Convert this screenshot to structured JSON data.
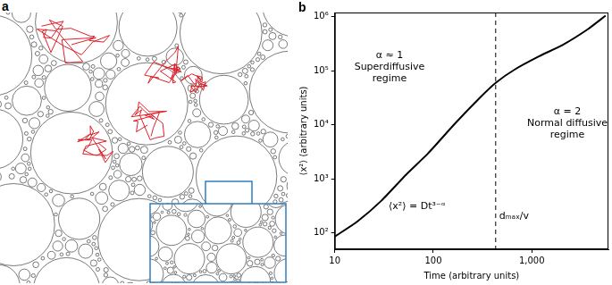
{
  "figure": {
    "panel_labels": [
      "a",
      "b"
    ]
  },
  "chart_data": {
    "type": "line",
    "x_label": "Time (arbitrary units)",
    "y_label": "⟨x²⟩ (arbitrary units)",
    "x": [
      10,
      16.8,
      29.9,
      53,
      89,
      167,
      298,
      430,
      667,
      1190,
      2110,
      3760,
      5620
    ],
    "values": [
      86,
      161,
      400,
      1200,
      3000,
      10700,
      32000,
      60000,
      105000,
      186000,
      310000,
      600000,
      1050000
    ],
    "color": "#000000",
    "log": true,
    "grid": false,
    "xlim": [
      10,
      6000
    ],
    "ylim": [
      50,
      1200000
    ],
    "xticks": [
      10,
      100,
      {
        "value": 1000,
        "label": "1,000"
      }
    ],
    "yticks": [
      {
        "value": 100,
        "label": "10²"
      },
      {
        "value": 1000,
        "label": "10³"
      },
      {
        "value": 10000,
        "label": "10⁴"
      },
      {
        "value": 100000,
        "label": "10⁵"
      },
      {
        "value": 1000000,
        "label": "10⁶"
      }
    ],
    "annotations": [
      {
        "lines": [
          "α ≈ 1",
          "Superdiffusive",
          "regime"
        ]
      },
      {
        "lines": [
          "⟨x²⟩ = Dt³⁻ᵅ"
        ]
      },
      {
        "lines": [
          "α = 2",
          "Normal diffusive",
          "regime"
        ]
      },
      {
        "lines": [
          "dₘₐₓ/v"
        ],
        "x": 430,
        "line_style": "dashed"
      }
    ]
  }
}
